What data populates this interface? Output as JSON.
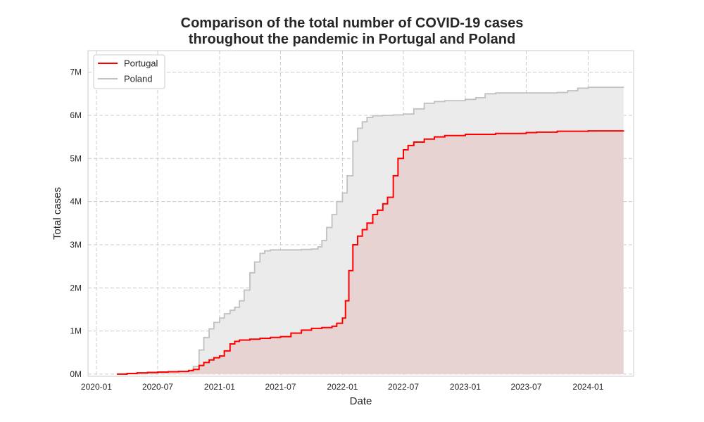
{
  "chart_data": {
    "type": "line",
    "title": "Comparison of the total number of COVID-19 cases\nthroughout the pandemic in Portugal and Poland",
    "xlabel": "Date",
    "ylabel": "Total cases",
    "x_ticks": [
      "2020-01",
      "2020-07",
      "2021-01",
      "2021-07",
      "2022-01",
      "2022-07",
      "2023-01",
      "2023-07",
      "2024-01"
    ],
    "y_ticks": [
      "0M",
      "1M",
      "2M",
      "3M",
      "4M",
      "5M",
      "6M",
      "7M"
    ],
    "ylim": [
      -50000,
      7500000
    ],
    "xlim": [
      "2019-12-07",
      "2024-05-15"
    ],
    "grid": true,
    "legend_position": "top-left",
    "series": [
      {
        "name": "Portugal",
        "color": "#ff0000",
        "fill": "#e8d3d3",
        "x": [
          "2020-03-02",
          "2020-04-01",
          "2020-05-01",
          "2020-06-01",
          "2020-07-01",
          "2020-08-01",
          "2020-09-01",
          "2020-10-01",
          "2020-10-15",
          "2020-11-01",
          "2020-11-15",
          "2020-12-01",
          "2020-12-15",
          "2021-01-01",
          "2021-01-15",
          "2021-02-01",
          "2021-02-15",
          "2021-03-01",
          "2021-04-01",
          "2021-05-01",
          "2021-06-01",
          "2021-07-01",
          "2021-08-01",
          "2021-09-01",
          "2021-10-01",
          "2021-11-01",
          "2021-12-01",
          "2021-12-15",
          "2022-01-01",
          "2022-01-10",
          "2022-01-20",
          "2022-02-01",
          "2022-02-15",
          "2022-03-01",
          "2022-03-15",
          "2022-04-01",
          "2022-04-15",
          "2022-05-01",
          "2022-05-15",
          "2022-06-01",
          "2022-06-15",
          "2022-07-01",
          "2022-07-15",
          "2022-08-01",
          "2022-09-01",
          "2022-10-01",
          "2022-11-01",
          "2023-01-01",
          "2023-04-01",
          "2023-07-01",
          "2023-08-01",
          "2023-10-01",
          "2024-01-01",
          "2024-04-15"
        ],
        "values": [
          0,
          15000,
          30000,
          40000,
          48000,
          55000,
          62000,
          80000,
          110000,
          200000,
          270000,
          330000,
          380000,
          420000,
          540000,
          700000,
          760000,
          790000,
          810000,
          830000,
          850000,
          870000,
          950000,
          1020000,
          1060000,
          1080000,
          1110000,
          1180000,
          1300000,
          1700000,
          2400000,
          3000000,
          3200000,
          3350000,
          3500000,
          3700000,
          3800000,
          3950000,
          4100000,
          4600000,
          5000000,
          5200000,
          5300000,
          5380000,
          5450000,
          5500000,
          5530000,
          5560000,
          5580000,
          5600000,
          5610000,
          5630000,
          5640000,
          5650000
        ]
      },
      {
        "name": "Poland",
        "color": "#c0c0c0",
        "fill": "#ebebeb",
        "x": [
          "2020-03-02",
          "2020-04-01",
          "2020-05-01",
          "2020-06-01",
          "2020-07-01",
          "2020-08-01",
          "2020-09-01",
          "2020-10-01",
          "2020-10-15",
          "2020-11-01",
          "2020-11-15",
          "2020-12-01",
          "2020-12-15",
          "2021-01-01",
          "2021-01-15",
          "2021-02-01",
          "2021-02-15",
          "2021-03-01",
          "2021-03-15",
          "2021-04-01",
          "2021-04-15",
          "2021-05-01",
          "2021-05-15",
          "2021-06-01",
          "2021-07-01",
          "2021-09-01",
          "2021-10-01",
          "2021-10-20",
          "2021-11-01",
          "2021-11-15",
          "2021-12-01",
          "2021-12-15",
          "2022-01-01",
          "2022-01-15",
          "2022-02-01",
          "2022-02-15",
          "2022-03-01",
          "2022-03-15",
          "2022-04-01",
          "2022-05-01",
          "2022-06-01",
          "2022-07-01",
          "2022-08-01",
          "2022-09-01",
          "2022-10-01",
          "2022-11-01",
          "2023-01-01",
          "2023-02-01",
          "2023-03-01",
          "2023-04-01",
          "2023-08-01",
          "2023-10-01",
          "2023-11-01",
          "2023-12-01",
          "2024-01-01",
          "2024-04-15"
        ],
        "values": [
          0,
          5000,
          10000,
          20000,
          35000,
          50000,
          65000,
          90000,
          180000,
          560000,
          850000,
          1050000,
          1200000,
          1300000,
          1400000,
          1480000,
          1550000,
          1700000,
          1950000,
          2350000,
          2600000,
          2800000,
          2860000,
          2880000,
          2880000,
          2890000,
          2900000,
          2950000,
          3100000,
          3400000,
          3700000,
          4000000,
          4200000,
          4600000,
          5400000,
          5700000,
          5850000,
          5950000,
          5990000,
          6000000,
          6010000,
          6030000,
          6150000,
          6280000,
          6320000,
          6340000,
          6370000,
          6410000,
          6500000,
          6520000,
          6520000,
          6530000,
          6570000,
          6630000,
          6650000,
          6660000
        ]
      }
    ]
  }
}
